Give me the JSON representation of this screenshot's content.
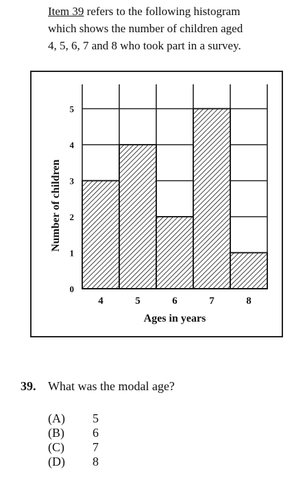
{
  "intro": {
    "item_ref": "Item 39",
    "line1_rest": " refers to the following histogram",
    "line2": "which shows the number of children aged",
    "line3": "4, 5, 6, 7 and 8 who took part in a survey."
  },
  "chart_data": {
    "type": "bar",
    "categories": [
      "4",
      "5",
      "6",
      "7",
      "8"
    ],
    "values": [
      3,
      4,
      2,
      5,
      1
    ],
    "title": "",
    "xlabel": "Ages in years",
    "ylabel": "Number of children",
    "ylim": [
      0,
      5
    ],
    "yticks": [
      "0",
      "1",
      "2",
      "3",
      "4",
      "5"
    ],
    "grid": true,
    "bar_fill": "hatched"
  },
  "question": {
    "number": "39.",
    "text": "What was the modal age?",
    "options": [
      {
        "label": "(A)",
        "value": "5"
      },
      {
        "label": "(B)",
        "value": "6"
      },
      {
        "label": "(C)",
        "value": "7"
      },
      {
        "label": "(D)",
        "value": "8"
      }
    ]
  }
}
